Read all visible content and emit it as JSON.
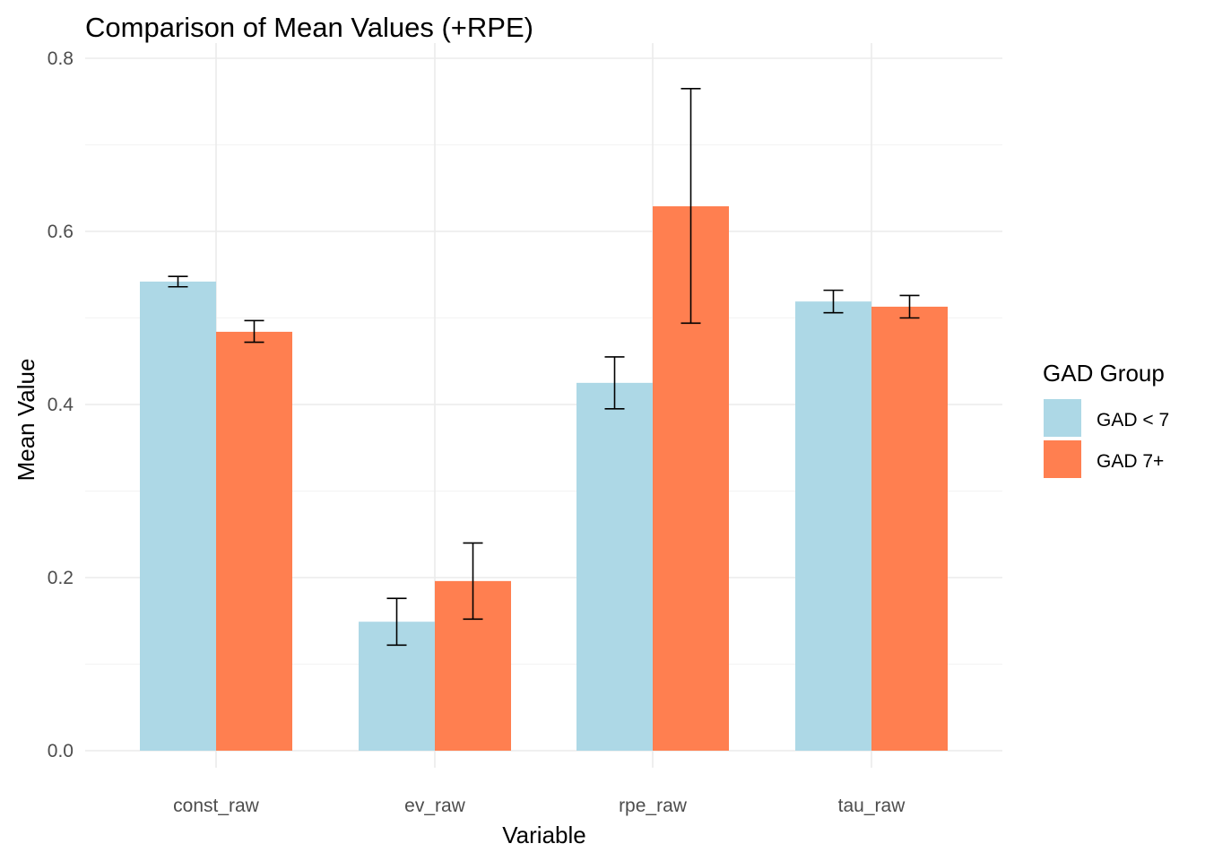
{
  "chart_data": {
    "type": "bar",
    "title": "Comparison of Mean Values (+RPE)",
    "xlabel": "Variable",
    "ylabel": "Mean Value",
    "categories": [
      "const_raw",
      "ev_raw",
      "rpe_raw",
      "tau_raw"
    ],
    "ylim": [
      0,
      0.8
    ],
    "yticks": [
      0.0,
      0.2,
      0.4,
      0.6,
      0.8
    ],
    "ytick_labels": [
      "0.0",
      "0.2",
      "0.4",
      "0.6",
      "0.8"
    ],
    "grid": true,
    "legend": {
      "title": "GAD Group",
      "placement": "right"
    },
    "series": [
      {
        "name": "GAD < 7",
        "color": "#add8e6",
        "values": [
          0.542,
          0.149,
          0.425,
          0.519
        ],
        "error_low": [
          0.536,
          0.122,
          0.395,
          0.506
        ],
        "error_high": [
          0.548,
          0.176,
          0.455,
          0.532
        ]
      },
      {
        "name": "GAD 7+",
        "color": "#ff7f50",
        "values": [
          0.484,
          0.196,
          0.629,
          0.513
        ],
        "error_low": [
          0.472,
          0.152,
          0.494,
          0.5
        ],
        "error_high": [
          0.497,
          0.24,
          0.765,
          0.526
        ]
      }
    ]
  }
}
